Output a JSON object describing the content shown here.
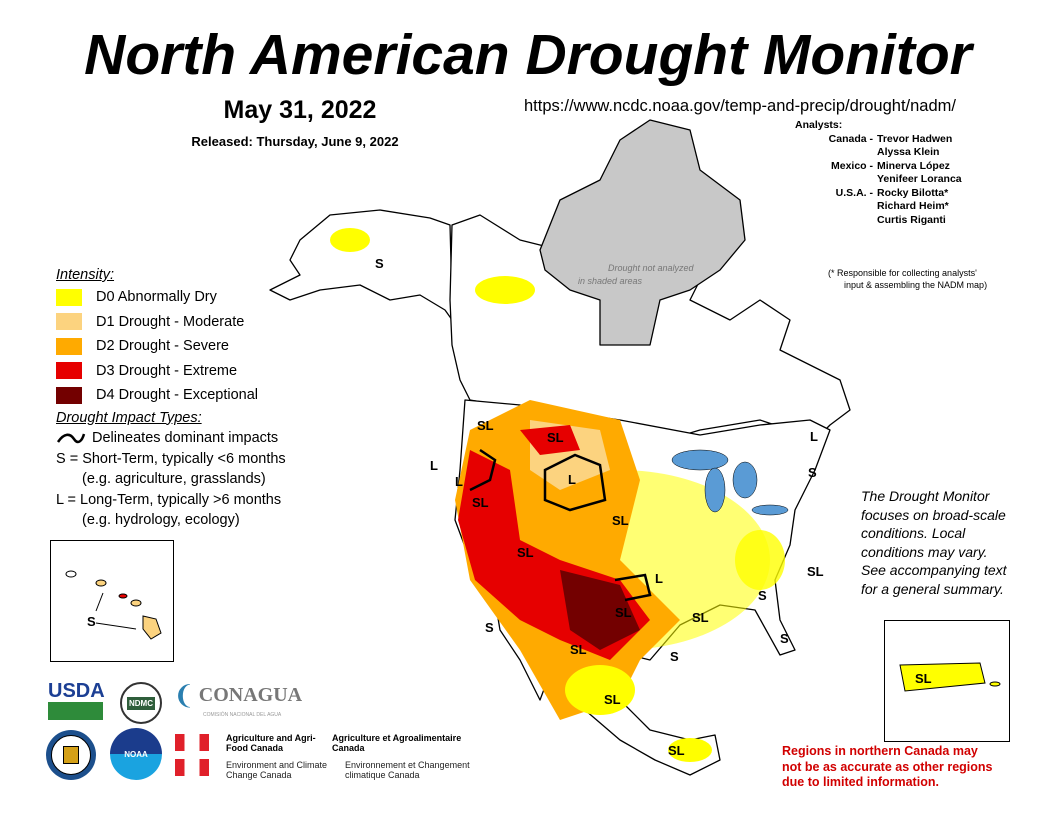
{
  "title": "North American Drought Monitor",
  "date": "May 31, 2022",
  "released": "Released: Thursday, June 9, 2022",
  "url": "https://www.ncdc.noaa.gov/temp-and-precip/drought/nadm/",
  "analysts": {
    "heading": "Analysts:",
    "rows": [
      {
        "country": "Canada -",
        "name": "Trevor Hadwen"
      },
      {
        "country": "",
        "name": "Alyssa Klein"
      },
      {
        "country": "Mexico -",
        "name": "Minerva López"
      },
      {
        "country": "",
        "name": "Yenifeer Loranca"
      },
      {
        "country": "U.S.A. -",
        "name": "Rocky Bilotta*"
      },
      {
        "country": "",
        "name": "Richard Heim*"
      },
      {
        "country": "",
        "name": "Curtis Riganti"
      }
    ],
    "note_line1": "(* Responsible for collecting analysts'",
    "note_line2": "input & assembling the NADM map)"
  },
  "legend": {
    "heading": "Intensity:",
    "items": [
      {
        "label": "D0 Abnormally Dry",
        "color": "#ffff00"
      },
      {
        "label": "D1 Drought - Moderate",
        "color": "#fcd37f"
      },
      {
        "label": "D2 Drought - Severe",
        "color": "#ffaa00"
      },
      {
        "label": "D3 Drought - Extreme",
        "color": "#e60000"
      },
      {
        "label": "D4 Drought - Exceptional",
        "color": "#730000"
      }
    ],
    "impacts_heading": "Drought Impact Types:",
    "delineates": "Delineates dominant impacts",
    "s_line": "S = Short-Term, typically <6 months",
    "s_example": "(e.g. agriculture, grasslands)",
    "l_line": "L = Long-Term, typically >6 months",
    "l_example": "(e.g. hydrology, ecology)"
  },
  "map": {
    "shaded_note_line1": "Drought not analyzed",
    "shaded_note_line2": "in shaded areas",
    "impact_labels": [
      "S",
      "SL",
      "SL",
      "L",
      "L",
      "SL",
      "SL",
      "SL",
      "L",
      "SL",
      "SL",
      "S",
      "L",
      "S",
      "SL",
      "S",
      "S",
      "SL",
      "SL",
      "SL",
      "S",
      "L"
    ],
    "hawaii_label": "S",
    "puerto_rico_label": "SL"
  },
  "summary": "The Drought Monitor focuses on broad-scale conditions.  Local conditions may vary.  See accompanying text for a general summary.",
  "summary_lines": [
    "The Drought Monitor",
    "focuses on broad-scale",
    "conditions.  Local",
    "conditions may vary.",
    "See accompanying text",
    "for a general summary."
  ],
  "warning_lines": [
    "Regions in northern Canada may",
    "not be as accurate as other regions",
    "due to limited information."
  ],
  "logos": {
    "usda": "USDA",
    "ndmc": "NDMC",
    "conagua": "CONAGUA",
    "conagua_sub": "COMISIÓN NACIONAL DEL AGUA",
    "noaa": "NOAA",
    "aafc_en": "Agriculture and Agri-Food Canada",
    "aafc_fr": "Agriculture et Agroalimentaire Canada",
    "eccc_en": "Environment and Climate Change Canada",
    "eccc_fr": "Environnement et Changement climatique Canada"
  }
}
